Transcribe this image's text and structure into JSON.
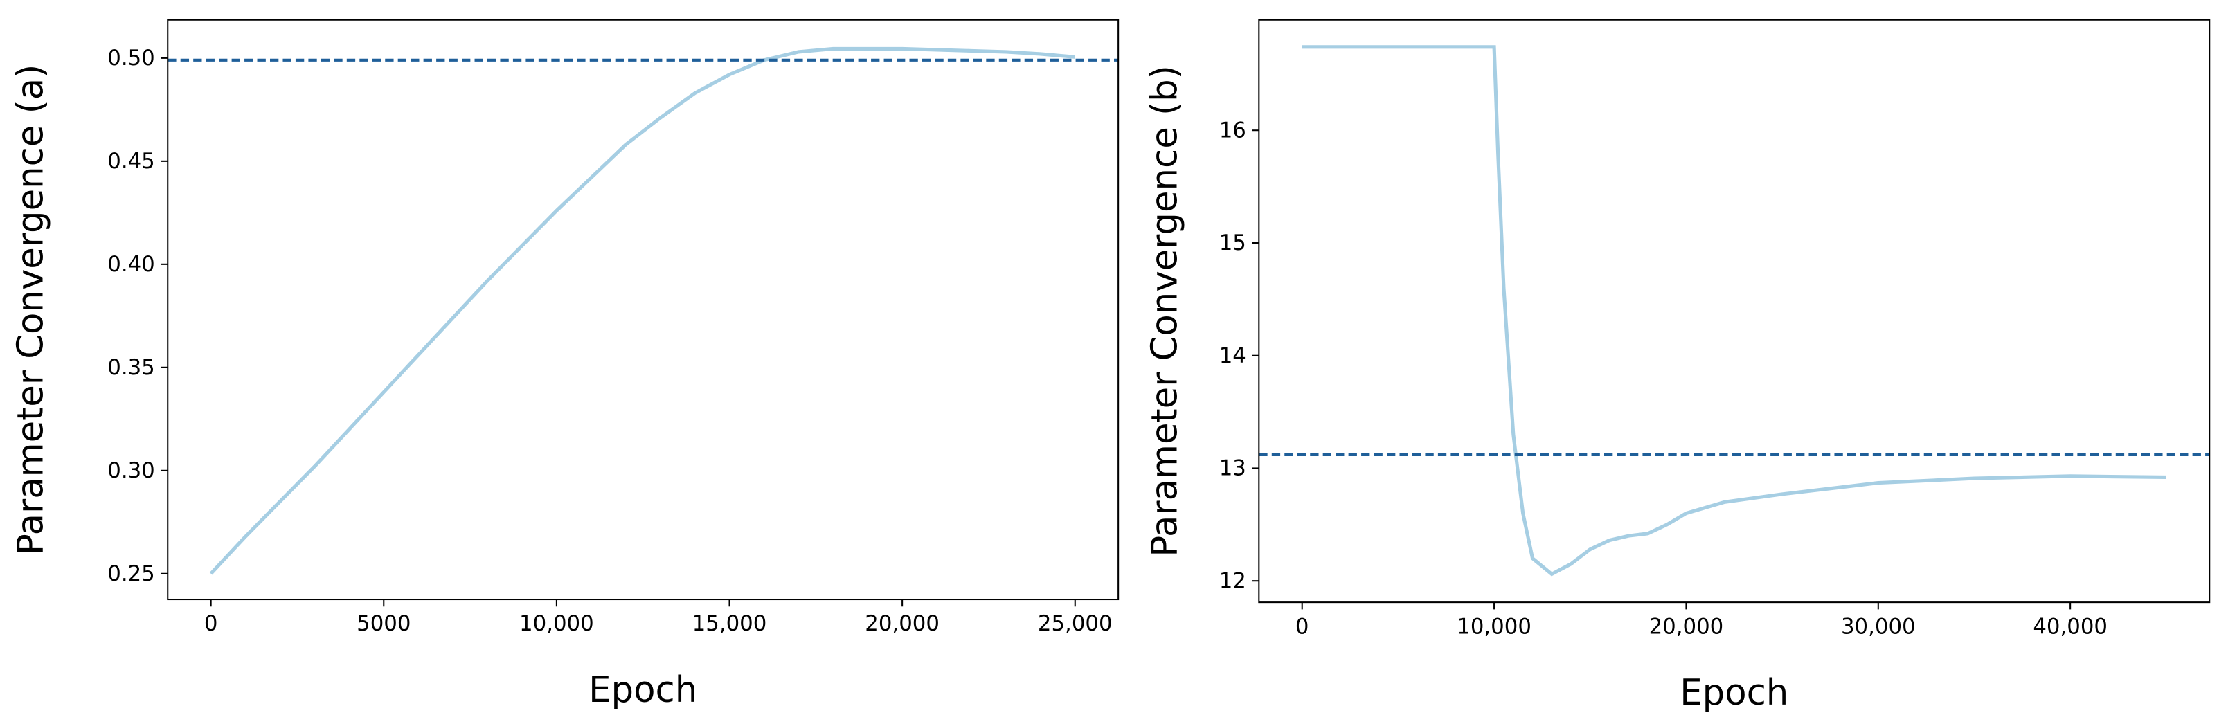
{
  "chart_data": [
    {
      "type": "line",
      "xlabel": "Epoch",
      "ylabel": "Parameter Convergence (a)",
      "x": [
        0,
        1000,
        2000,
        3000,
        4000,
        5000,
        6000,
        7000,
        8000,
        9000,
        10000,
        11000,
        12000,
        13000,
        14000,
        15000,
        16000,
        17000,
        18000,
        19000,
        20000,
        21000,
        22000,
        23000,
        24000,
        25000
      ],
      "series": [
        {
          "color": "#a6cee3",
          "values": [
            0.25,
            0.268,
            0.285,
            0.302,
            0.32,
            0.338,
            0.356,
            0.374,
            0.392,
            0.409,
            0.426,
            0.442,
            0.458,
            0.471,
            0.483,
            0.492,
            0.499,
            0.503,
            0.5045,
            0.5045,
            0.5045,
            0.504,
            0.5035,
            0.503,
            0.502,
            0.5005
          ]
        }
      ],
      "reference_line": {
        "value": 0.499,
        "color": "#1f5f99"
      },
      "xlim": [
        -1250,
        26250
      ],
      "xticks": [
        0,
        5000,
        {
          "value": 10000,
          "label": "10,000"
        },
        {
          "value": 15000,
          "label": "15,000"
        },
        {
          "value": 20000,
          "label": "20,000"
        },
        {
          "value": 25000,
          "label": "25,000"
        }
      ],
      "ylim": [
        0.2375,
        0.5185
      ],
      "yticks": [
        0.25,
        {
          "value": 0.3,
          "label": "0.30"
        },
        0.35,
        {
          "value": 0.4,
          "label": "0.40"
        },
        0.45,
        {
          "value": 0.5,
          "label": "0.50"
        }
      ],
      "grid": false
    },
    {
      "type": "line",
      "xlabel": "Epoch",
      "ylabel": "Parameter Convergence (b)",
      "x": [
        0,
        5000,
        10000,
        10200,
        10500,
        11000,
        11500,
        12000,
        13000,
        14000,
        15000,
        16000,
        17000,
        18000,
        19000,
        20000,
        22000,
        25000,
        30000,
        35000,
        40000,
        45000
      ],
      "series": [
        {
          "color": "#a6cee3",
          "values": [
            16.74,
            16.74,
            16.74,
            15.8,
            14.6,
            13.3,
            12.6,
            12.2,
            12.06,
            12.15,
            12.28,
            12.36,
            12.4,
            12.42,
            12.5,
            12.6,
            12.7,
            12.77,
            12.87,
            12.91,
            12.93,
            12.92
          ]
        }
      ],
      "reference_line": {
        "value": 13.12,
        "color": "#1f5f99"
      },
      "xlim": [
        -2250,
        47250
      ],
      "xticks": [
        0,
        {
          "value": 10000,
          "label": "10,000"
        },
        {
          "value": 20000,
          "label": "20,000"
        },
        {
          "value": 30000,
          "label": "30,000"
        },
        {
          "value": 40000,
          "label": "40,000"
        }
      ],
      "ylim": [
        11.81,
        16.98
      ],
      "yticks": [
        12,
        13,
        14,
        15,
        16
      ],
      "grid": false
    }
  ]
}
